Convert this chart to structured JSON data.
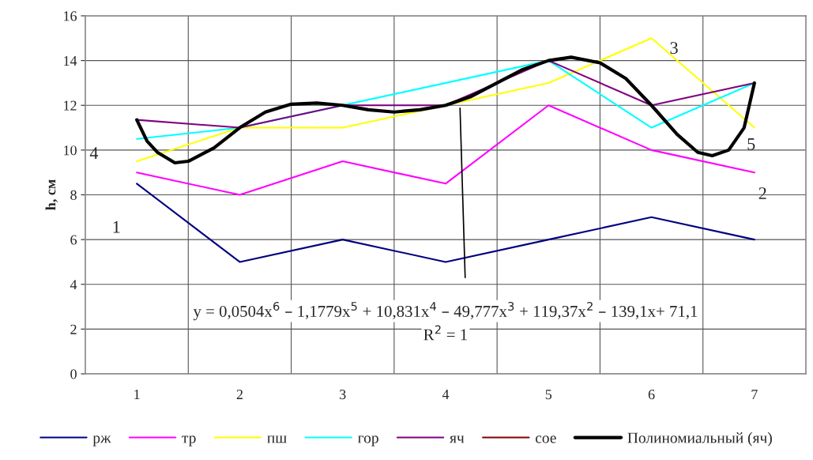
{
  "chart_data": {
    "type": "line",
    "ylabel": "h, см",
    "x": [
      1,
      2,
      3,
      4,
      5,
      6,
      7
    ],
    "xlim": [
      0.5,
      7.5
    ],
    "xticks": [
      1,
      {
        "value": 1.5,
        "label": null
      },
      2,
      {
        "value": 2.5,
        "label": null
      },
      3,
      {
        "value": 3.5,
        "label": null
      },
      4,
      {
        "value": 4.5,
        "label": null
      },
      5,
      {
        "value": 5.5,
        "label": null
      },
      6,
      {
        "value": 6.5,
        "label": null
      },
      7
    ],
    "ylim": [
      0,
      16
    ],
    "yticks": [
      0,
      2,
      4,
      6,
      8,
      10,
      12,
      14,
      16
    ],
    "grid": true,
    "legend": "bottom",
    "series": [
      {
        "name": "рж",
        "color": "#000080",
        "values": [
          8.5,
          5,
          6,
          5,
          6,
          7,
          6
        ]
      },
      {
        "name": "тр",
        "color": "#ff00ff",
        "values": [
          9,
          8,
          9.5,
          8.5,
          12,
          10,
          9
        ]
      },
      {
        "name": "пш",
        "color": "#ffff00",
        "values": [
          9.5,
          11,
          11,
          12,
          13,
          15,
          11
        ]
      },
      {
        "name": "гор",
        "color": "#00ffff",
        "values": [
          10.5,
          11,
          null,
          null,
          14,
          11,
          13
        ]
      },
      {
        "name": "яч",
        "color": "#800080",
        "values": [
          11.35,
          11,
          12,
          12,
          14,
          12,
          13
        ]
      },
      {
        "name": "сое",
        "color": "#800000",
        "values": [
          null,
          null,
          null,
          null,
          null,
          null,
          null
        ]
      },
      {
        "name": "Полиномиальный (яч)",
        "color": "#000000",
        "x": [
          1,
          1.1,
          1.2,
          1.37,
          1.5,
          1.75,
          2,
          2.25,
          2.5,
          2.75,
          3,
          3.25,
          3.5,
          3.75,
          4,
          4.25,
          4.5,
          4.75,
          5,
          5.22,
          5.5,
          5.75,
          6,
          6.25,
          6.45,
          6.59,
          6.75,
          6.9,
          7
        ],
        "values": [
          11.35,
          10.4,
          9.9,
          9.43,
          9.5,
          10.1,
          11,
          11.7,
          12.05,
          12.1,
          12,
          11.8,
          11.7,
          11.8,
          12,
          12.4,
          13,
          13.6,
          14,
          14.15,
          13.9,
          13.2,
          12,
          10.7,
          9.9,
          9.75,
          10.0,
          11,
          13
        ]
      },
      {
        "color": "#000000",
        "x": [
          4.14,
          4.19
        ],
        "values": [
          11.87,
          4.3
        ]
      }
    ],
    "annotations": [
      "1",
      "4",
      "2",
      "3",
      "5",
      "y = 0,0504x$^{6}$ – 1,1779x$^{5}$ + 10,831x$^{4}$ – 49,777x$^{3}$ + 119,37x$^{2}$ – 139,1x+ 71,1",
      "R$^{2}$ = 1"
    ]
  }
}
